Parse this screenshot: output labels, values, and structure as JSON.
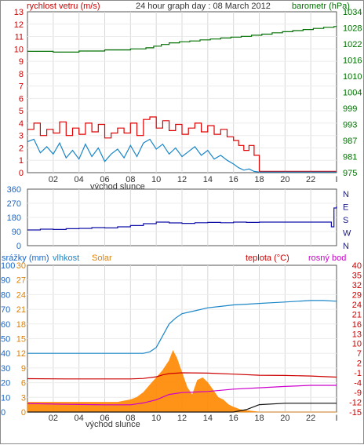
{
  "chart_data": [
    {
      "type": "line",
      "title": "24 hour graph day : 08 March 2012",
      "ylabel_left": "rychlost vetru (m/s)",
      "ylabel_right": "barometr (hPa)",
      "xlabel": "východ slunce",
      "x_ticks": [
        "02",
        "04",
        "06",
        "08",
        "10",
        "12",
        "14",
        "16",
        "18",
        "20",
        "22",
        "I"
      ],
      "xlim": [
        0,
        24
      ],
      "ylim_left": [
        0,
        13
      ],
      "ylim_right": [
        975,
        1034
      ],
      "y_ticks_left": [
        "0",
        "1",
        "2",
        "3",
        "4",
        "5",
        "6",
        "7",
        "8",
        "9",
        "10",
        "11",
        "12",
        "13"
      ],
      "y_ticks_right": [
        "975",
        "981",
        "987",
        "993",
        "999",
        "1004",
        "1010",
        "1016",
        "1022",
        "1028",
        "1034"
      ],
      "grid": true,
      "colors": {
        "gust": "#e00000",
        "wind": "#1a86c8",
        "pressure": "#007000",
        "left_axis": "#cc0000",
        "right_axis": "#007000"
      },
      "series": [
        {
          "name": "gust",
          "x": [
            0,
            0.5,
            1,
            1.5,
            2,
            2.5,
            3,
            3.5,
            4,
            4.5,
            5,
            5.5,
            6,
            6.5,
            7,
            7.5,
            8,
            8.5,
            9,
            9.5,
            10,
            10.5,
            11,
            11.5,
            12,
            12.5,
            13,
            13.5,
            14,
            14.5,
            15,
            15.5,
            16,
            16.4,
            16.8,
            17.2,
            17.6,
            18,
            24
          ],
          "values": [
            3.5,
            4.0,
            3.0,
            3.5,
            3.2,
            4.1,
            3.0,
            3.6,
            3.1,
            4.0,
            3.3,
            3.9,
            2.8,
            3.2,
            3.6,
            3.2,
            4.0,
            3.0,
            4.3,
            4.5,
            3.6,
            4.2,
            3.4,
            3.9,
            3.1,
            3.6,
            4.0,
            3.3,
            3.8,
            3.1,
            3.5,
            2.9,
            2.6,
            2.2,
            1.8,
            2.2,
            1.4,
            0.1,
            0.1
          ]
        },
        {
          "name": "wind",
          "x": [
            0,
            0.5,
            1,
            1.5,
            2,
            2.5,
            3,
            3.5,
            4,
            4.5,
            5,
            5.5,
            6,
            6.5,
            7,
            7.5,
            8,
            8.5,
            9,
            9.5,
            10,
            10.5,
            11,
            11.5,
            12,
            12.5,
            13,
            13.5,
            14,
            14.5,
            15,
            15.5,
            16,
            16.4,
            16.8,
            17.2,
            17.6,
            18,
            24
          ],
          "values": [
            2.5,
            2.7,
            1.6,
            2.1,
            1.5,
            2.4,
            1.2,
            1.8,
            1.1,
            2.3,
            1.3,
            2.0,
            0.9,
            1.5,
            1.9,
            1.2,
            2.2,
            1.3,
            2.4,
            2.7,
            1.9,
            2.3,
            1.5,
            2.0,
            1.3,
            1.7,
            2.1,
            1.4,
            1.8,
            1.1,
            1.4,
            1.0,
            0.7,
            0.4,
            0.2,
            0.3,
            0.1,
            0.05,
            0.05
          ]
        },
        {
          "name": "pressure",
          "x": [
            0,
            2,
            4,
            6,
            8,
            9.2,
            9.8,
            10.4,
            11,
            11.8,
            12.6,
            13.4,
            14.2,
            15,
            15.8,
            16.6,
            17.4,
            18.2,
            19,
            19.8,
            20.6,
            21.4,
            22.2,
            23,
            23.8,
            24
          ],
          "values": [
            1019.5,
            1019.2,
            1019.6,
            1020.0,
            1020.4,
            1020.8,
            1021.4,
            1022.0,
            1022.6,
            1023.0,
            1023.3,
            1023.7,
            1024.0,
            1024.4,
            1024.7,
            1025.0,
            1025.4,
            1025.8,
            1026.3,
            1026.7,
            1027.1,
            1027.5,
            1027.9,
            1028.3,
            1028.6,
            1028.8
          ]
        }
      ]
    },
    {
      "type": "line",
      "ylabel": "",
      "x_ticks": [],
      "xlim": [
        0,
        24
      ],
      "ylim": [
        0,
        360
      ],
      "y_ticks_left": [
        "0",
        "90",
        "180",
        "270",
        "360"
      ],
      "y_ticks_right": [
        "N",
        "E",
        "S",
        "W",
        "N"
      ],
      "grid": true,
      "colors": {
        "direction": "#1010a8"
      },
      "series": [
        {
          "name": "direction",
          "x": [
            0,
            1,
            2,
            3,
            4,
            5,
            6,
            7,
            8,
            9,
            10,
            11,
            12,
            13,
            14,
            15,
            16,
            17,
            18,
            19,
            20,
            21,
            22,
            23,
            23.6,
            23.8,
            24
          ],
          "values": [
            100,
            105,
            103,
            108,
            110,
            115,
            113,
            120,
            128,
            140,
            150,
            145,
            142,
            146,
            148,
            146,
            150,
            148,
            150,
            150,
            150,
            150,
            150,
            150,
            120,
            240,
            250
          ]
        }
      ]
    },
    {
      "type": "area",
      "x_ticks": [
        "02",
        "04",
        "06",
        "08",
        "10",
        "12",
        "14",
        "16",
        "18",
        "20",
        "22",
        "I"
      ],
      "xlabel": "východ slunce",
      "xlim": [
        0,
        24
      ],
      "legend": [
        "srážky (mm)",
        "vlhkost",
        "Solar",
        "teplota (°C)",
        "rosný bod"
      ],
      "legend_position": "top",
      "y_ticks_axis1": [
        "0",
        "10",
        "20",
        "30",
        "40",
        "50",
        "60",
        "70",
        "80",
        "90",
        "100"
      ],
      "y_ticks_axis2": [
        "0",
        "3",
        "6",
        "9",
        "12",
        "15",
        "18",
        "21",
        "24",
        "27",
        "30"
      ],
      "y_ticks_right": [
        "-15",
        "-12",
        "-9",
        "-4",
        "-1",
        "2",
        "7",
        "10",
        "13",
        "16",
        "21",
        "24",
        "29",
        "32",
        "35",
        "40"
      ],
      "grid": true,
      "colors": {
        "rain": "#1a66c8",
        "humidity": "#1a86c8",
        "solar": "#ff8800",
        "temperature": "#cc0000",
        "dew_point": "#cc00cc",
        "left_axis_1": "#1a66c8",
        "left_axis_2": "#e08000",
        "right_axis": "#cc0000"
      },
      "series": [
        {
          "name": "vlhkost (%)",
          "x": [
            0,
            3,
            6,
            9,
            9.5,
            10,
            10.5,
            11,
            11.5,
            12,
            13,
            14,
            15,
            16,
            17,
            18,
            19,
            20,
            21,
            22,
            23,
            24
          ],
          "values": [
            40,
            40,
            40,
            40,
            41,
            44,
            52,
            60,
            64,
            67,
            69,
            71,
            72,
            73,
            73.5,
            74,
            74.5,
            75,
            75.5,
            76,
            76,
            75.5
          ]
        },
        {
          "name": "teplota (°C)",
          "x": [
            0,
            3,
            6,
            8,
            9,
            10,
            10.5,
            11,
            12,
            14,
            16,
            18,
            20,
            22,
            24
          ],
          "values": [
            -2.5,
            -2.6,
            -2.6,
            -2.6,
            -2.4,
            -1.8,
            -1.1,
            -0.6,
            -0.3,
            -0.4,
            -0.8,
            -1.2,
            -1.3,
            -1.5,
            -1.9
          ]
        },
        {
          "name": "rosný bod (°C)",
          "x": [
            0,
            3,
            6,
            8,
            9,
            10,
            11,
            12,
            14,
            16,
            18,
            20,
            22,
            24
          ],
          "values": [
            -11.8,
            -12.1,
            -12.3,
            -12.3,
            -11.6,
            -10.4,
            -8.4,
            -7.7,
            -7.3,
            -6.4,
            -5.9,
            -5.4,
            -5.0,
            -5.0
          ]
        },
        {
          "name": "Solar",
          "x": [
            0,
            1,
            2,
            3,
            4,
            5,
            6,
            7,
            8,
            8.5,
            9,
            9.5,
            10,
            10.5,
            11,
            11.3,
            11.6,
            12,
            12.4,
            12.8,
            13.2,
            13.6,
            14,
            14.4,
            14.8,
            15.2,
            15.6,
            16,
            16.5,
            17,
            18,
            24
          ],
          "values": [
            2,
            2,
            2,
            2,
            2,
            2,
            2,
            2,
            2.5,
            3,
            4,
            5.5,
            7,
            8.5,
            10.5,
            12.5,
            11,
            8,
            5,
            3.5,
            6.5,
            7,
            6,
            4.5,
            3,
            2.5,
            1.5,
            1,
            0.5,
            0.3,
            0,
            0
          ]
        },
        {
          "name": "srážky (mm)",
          "x": [
            0,
            16,
            17,
            18,
            20,
            22,
            24
          ],
          "values": [
            0,
            0,
            0.5,
            1.5,
            1.8,
            1.8,
            1.8
          ]
        }
      ]
    }
  ]
}
